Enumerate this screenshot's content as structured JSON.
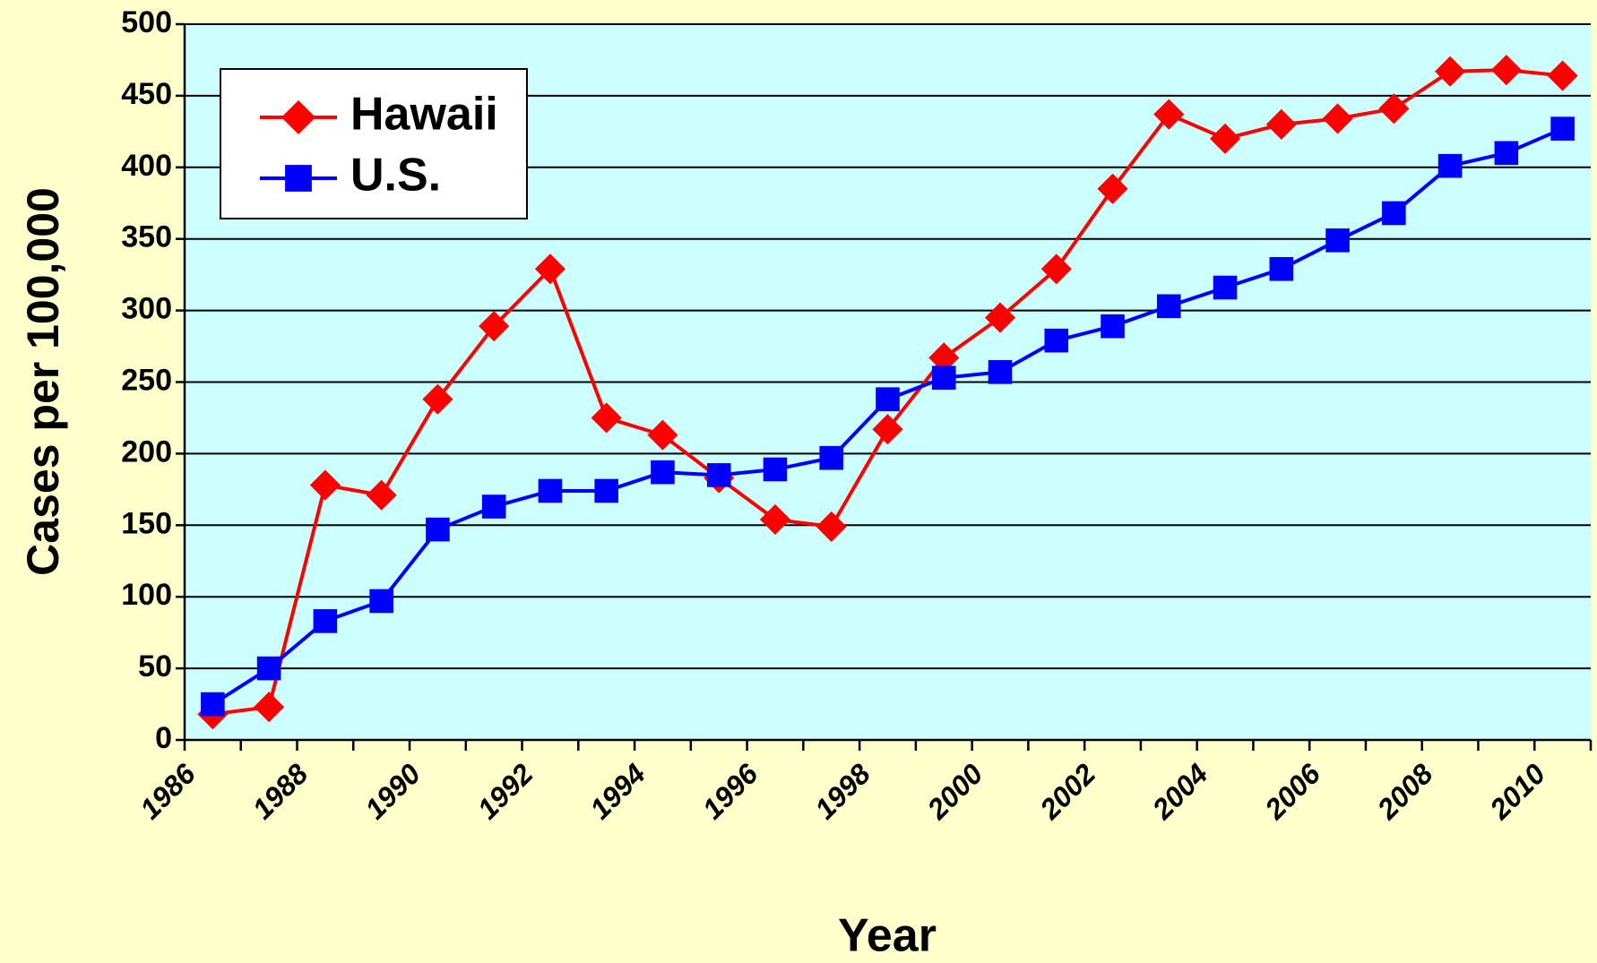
{
  "chart_data": {
    "type": "line",
    "y_label": "Cases per 100,000",
    "x_label": "Year",
    "categories": [
      "1986",
      null,
      "1988",
      null,
      "1990",
      null,
      "1992",
      null,
      "1994",
      null,
      "1996",
      null,
      "1998",
      null,
      "2000",
      null,
      "2002",
      null,
      "2004",
      null,
      "2006",
      null,
      "2008",
      null,
      "2010"
    ],
    "series": [
      {
        "name": "Hawaii",
        "color": "#ff0000",
        "marker": "diamond",
        "values": [
          18,
          23,
          178,
          171,
          238,
          289,
          329,
          225,
          213,
          183,
          154,
          149,
          217,
          267,
          295,
          329,
          385,
          437,
          420,
          430,
          434,
          441,
          467,
          468,
          464
        ]
      },
      {
        "name": "U.S.",
        "color": "#0000ff",
        "marker": "square",
        "values": [
          25,
          50,
          83,
          97,
          147,
          163,
          174,
          174,
          187,
          185,
          189,
          197,
          238,
          253,
          257,
          279,
          289,
          303,
          316,
          329,
          349,
          368,
          401,
          410,
          427
        ]
      }
    ],
    "ylim": [
      0,
      500
    ],
    "yticks": [
      0,
      50,
      100,
      150,
      200,
      250,
      300,
      350,
      400,
      450,
      500
    ],
    "grid": true,
    "legend": "upper left"
  }
}
